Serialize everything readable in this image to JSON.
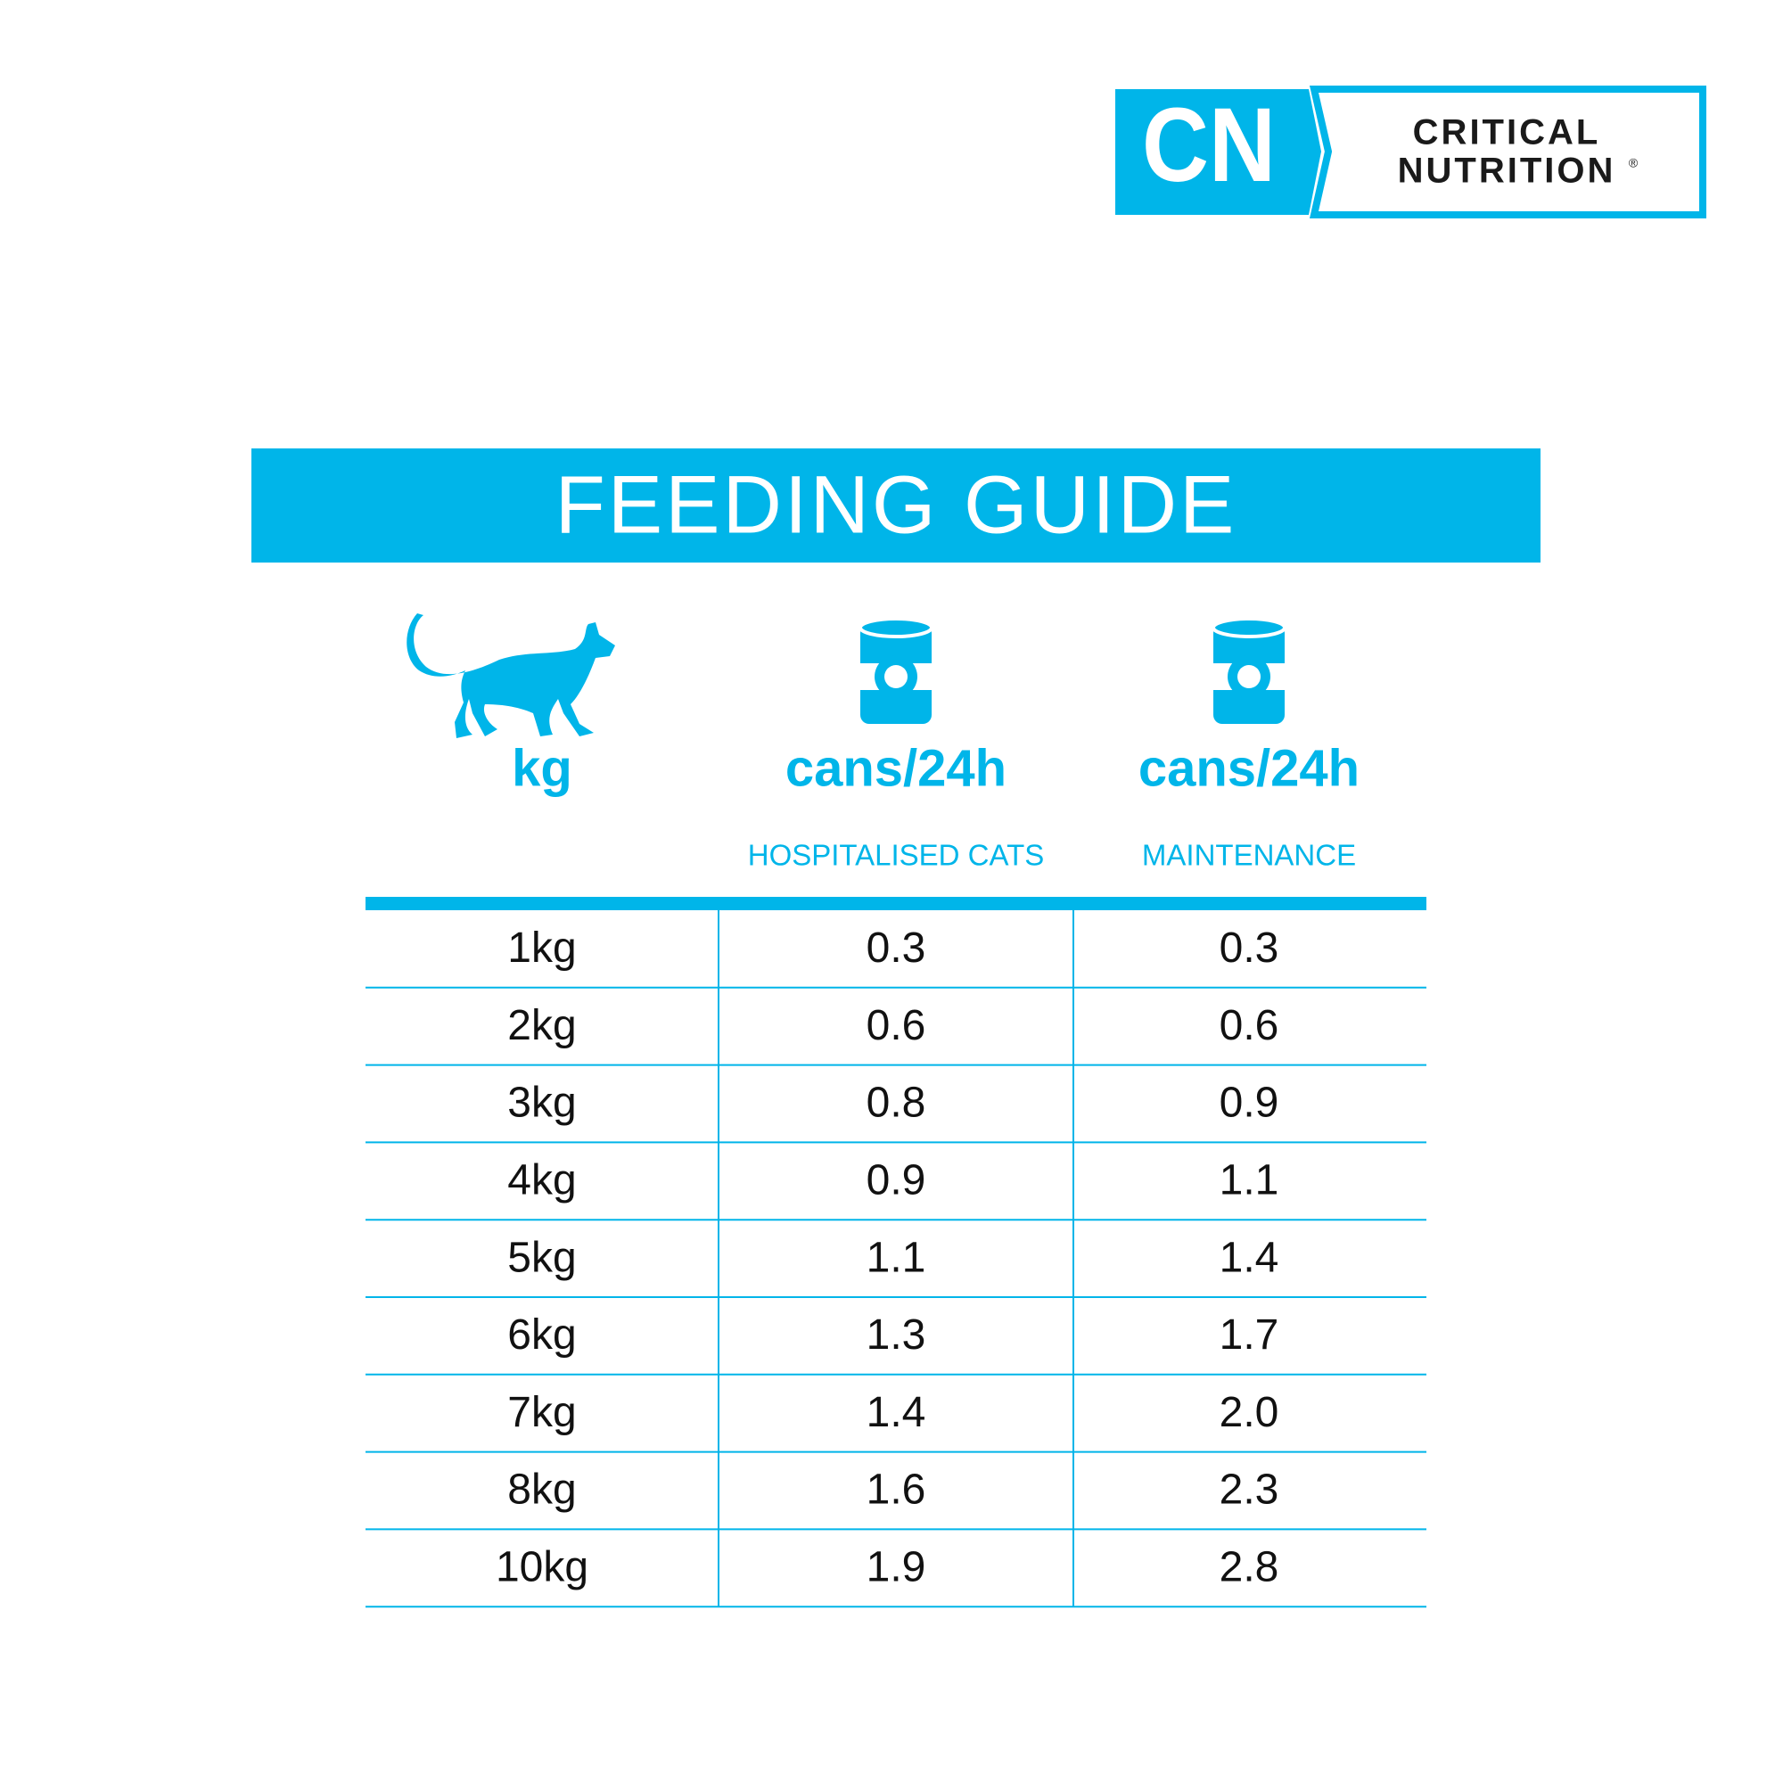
{
  "logo": {
    "mark": "CN",
    "line1": "CRITICAL",
    "line2": "NUTRITION",
    "registered": "®"
  },
  "title": "FEEDING GUIDE",
  "table": {
    "columns": [
      {
        "unit": "kg"
      },
      {
        "unit": "cans/24h",
        "label": "HOSPITALISED CATS"
      },
      {
        "unit": "cans/24h",
        "label": "MAINTENANCE"
      }
    ],
    "rows": [
      [
        "1kg",
        "0.3",
        "0.3"
      ],
      [
        "2kg",
        "0.6",
        "0.6"
      ],
      [
        "3kg",
        "0.8",
        "0.9"
      ],
      [
        "4kg",
        "0.9",
        "1.1"
      ],
      [
        "5kg",
        "1.1",
        "1.4"
      ],
      [
        "6kg",
        "1.3",
        "1.7"
      ],
      [
        "7kg",
        "1.4",
        "2.0"
      ],
      [
        "8kg",
        "1.6",
        "2.3"
      ],
      [
        "10kg",
        "1.9",
        "2.8"
      ]
    ]
  }
}
